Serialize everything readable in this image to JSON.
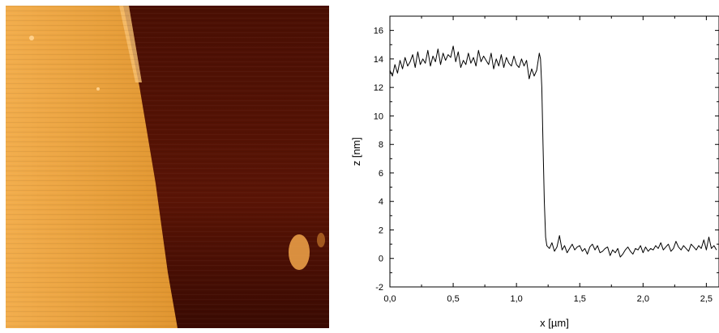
{
  "afm_image": {
    "icon": "afm-topography-image",
    "colors": {
      "high_face": "#e0952f",
      "high_face_light": "#f2ad4c",
      "edge": "#f8c071",
      "low_face": "#5a1405",
      "low_face_dark": "#3a0a02",
      "blob": "#f2a64a"
    }
  },
  "chart_data": {
    "type": "line",
    "title": "",
    "xlabel": "x [µm]",
    "ylabel": "z [nm]",
    "xlim": [
      0,
      2.6
    ],
    "ylim": [
      -2,
      17
    ],
    "x_ticks": [
      0.0,
      0.5,
      1.0,
      1.5,
      2.0,
      2.5
    ],
    "x_tick_labels": [
      "0,0",
      "0,5",
      "1,0",
      "1,5",
      "2,0",
      "2,5"
    ],
    "y_ticks": [
      -2,
      0,
      2,
      4,
      6,
      8,
      10,
      12,
      14,
      16
    ],
    "y_tick_labels": [
      "-2",
      "0",
      "2",
      "4",
      "6",
      "8",
      "10",
      "12",
      "14",
      "16"
    ],
    "grid": false,
    "line_color": "#000000",
    "series": [
      {
        "x": [
          0.0,
          0.02,
          0.04,
          0.06,
          0.08,
          0.1,
          0.12,
          0.14,
          0.16,
          0.18,
          0.2,
          0.22,
          0.24,
          0.26,
          0.28,
          0.3,
          0.32,
          0.34,
          0.36,
          0.38,
          0.4,
          0.42,
          0.44,
          0.46,
          0.48,
          0.5,
          0.52,
          0.54,
          0.56,
          0.58,
          0.6,
          0.62,
          0.64,
          0.66,
          0.68,
          0.7,
          0.72,
          0.74,
          0.76,
          0.78,
          0.8,
          0.82,
          0.84,
          0.86,
          0.88,
          0.9,
          0.92,
          0.94,
          0.96,
          0.98,
          1.0,
          1.02,
          1.04,
          1.06,
          1.08,
          1.1,
          1.12,
          1.14,
          1.16,
          1.18,
          1.19,
          1.2,
          1.21,
          1.22,
          1.23,
          1.24,
          1.26,
          1.28,
          1.3,
          1.32,
          1.34,
          1.36,
          1.38,
          1.4,
          1.42,
          1.44,
          1.46,
          1.48,
          1.5,
          1.52,
          1.54,
          1.56,
          1.58,
          1.6,
          1.62,
          1.64,
          1.66,
          1.68,
          1.7,
          1.72,
          1.74,
          1.76,
          1.78,
          1.8,
          1.82,
          1.84,
          1.86,
          1.88,
          1.9,
          1.92,
          1.94,
          1.96,
          1.98,
          2.0,
          2.02,
          2.04,
          2.06,
          2.08,
          2.1,
          2.12,
          2.14,
          2.16,
          2.18,
          2.2,
          2.22,
          2.24,
          2.26,
          2.28,
          2.3,
          2.32,
          2.34,
          2.36,
          2.38,
          2.4,
          2.42,
          2.44,
          2.46,
          2.48,
          2.5,
          2.52,
          2.54,
          2.56,
          2.58
        ],
        "y": [
          13.2,
          12.8,
          13.6,
          13.0,
          13.9,
          13.3,
          14.1,
          13.5,
          13.8,
          14.3,
          13.4,
          14.5,
          13.6,
          14.0,
          13.7,
          14.6,
          13.5,
          14.2,
          13.8,
          14.7,
          13.6,
          14.4,
          13.9,
          14.3,
          14.1,
          14.9,
          13.8,
          14.5,
          13.4,
          13.9,
          13.6,
          14.4,
          13.7,
          14.1,
          13.5,
          14.6,
          13.8,
          14.2,
          13.9,
          13.6,
          14.4,
          13.3,
          14.0,
          13.5,
          14.3,
          13.4,
          14.1,
          13.7,
          13.5,
          14.2,
          13.6,
          13.4,
          14.0,
          13.5,
          13.9,
          12.6,
          13.3,
          12.8,
          13.2,
          14.4,
          14.0,
          12.0,
          8.0,
          4.0,
          1.5,
          0.9,
          0.7,
          1.1,
          0.5,
          0.8,
          1.6,
          0.6,
          0.9,
          0.4,
          0.7,
          1.0,
          0.6,
          0.8,
          0.9,
          0.5,
          0.7,
          0.3,
          0.8,
          1.0,
          0.6,
          0.9,
          0.4,
          0.5,
          0.7,
          0.8,
          0.2,
          0.6,
          0.4,
          0.7,
          0.1,
          0.3,
          0.6,
          0.8,
          0.5,
          0.3,
          0.7,
          0.6,
          0.9,
          0.4,
          0.8,
          0.5,
          0.7,
          0.6,
          0.9,
          0.7,
          1.1,
          0.6,
          0.8,
          1.0,
          0.5,
          0.7,
          1.2,
          0.8,
          0.6,
          0.9,
          0.7,
          0.5,
          1.0,
          0.8,
          0.6,
          0.9,
          0.7,
          1.3,
          0.6,
          1.5,
          0.7,
          0.9,
          0.6
        ]
      }
    ]
  }
}
